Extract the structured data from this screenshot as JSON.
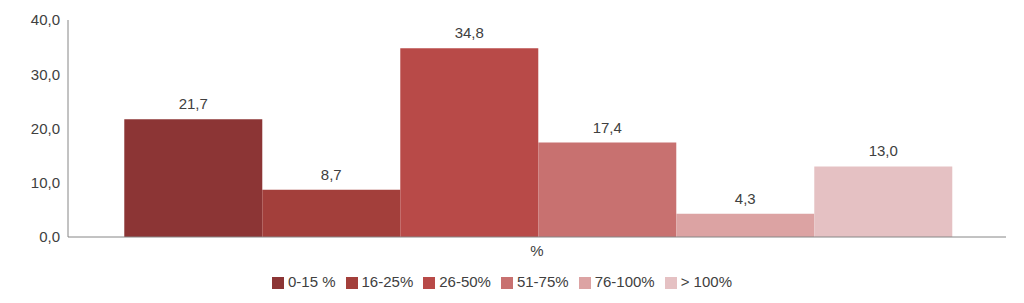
{
  "chart_data": {
    "type": "bar",
    "categories": [
      "%"
    ],
    "series": [
      {
        "name": "0-15 %",
        "color": "#8c3535",
        "values": [
          21.7
        ],
        "value_labels": [
          "21,7"
        ]
      },
      {
        "name": "16-25%",
        "color": "#a33f3b",
        "values": [
          8.7
        ],
        "value_labels": [
          "8,7"
        ]
      },
      {
        "name": "26-50%",
        "color": "#b84a48",
        "values": [
          34.8
        ],
        "value_labels": [
          "34,8"
        ]
      },
      {
        "name": "51-75%",
        "color": "#c87170",
        "values": [
          17.4
        ],
        "value_labels": [
          "17,4"
        ]
      },
      {
        "name": "76-100%",
        "color": "#dca3a3",
        "values": [
          4.3
        ],
        "value_labels": [
          "4,3"
        ]
      },
      {
        "name": "> 100%",
        "color": "#e5c1c3",
        "values": [
          13.0
        ],
        "value_labels": [
          "13,0"
        ]
      }
    ],
    "ylim": [
      0,
      40
    ],
    "yticks": [
      {
        "value": 0,
        "label": "0,0"
      },
      {
        "value": 10,
        "label": "10,0"
      },
      {
        "value": 20,
        "label": "20,0"
      },
      {
        "value": 30,
        "label": "30,0"
      },
      {
        "value": 40,
        "label": "40,0"
      }
    ],
    "grid": false,
    "legend": "bottom",
    "data_labels": true
  }
}
